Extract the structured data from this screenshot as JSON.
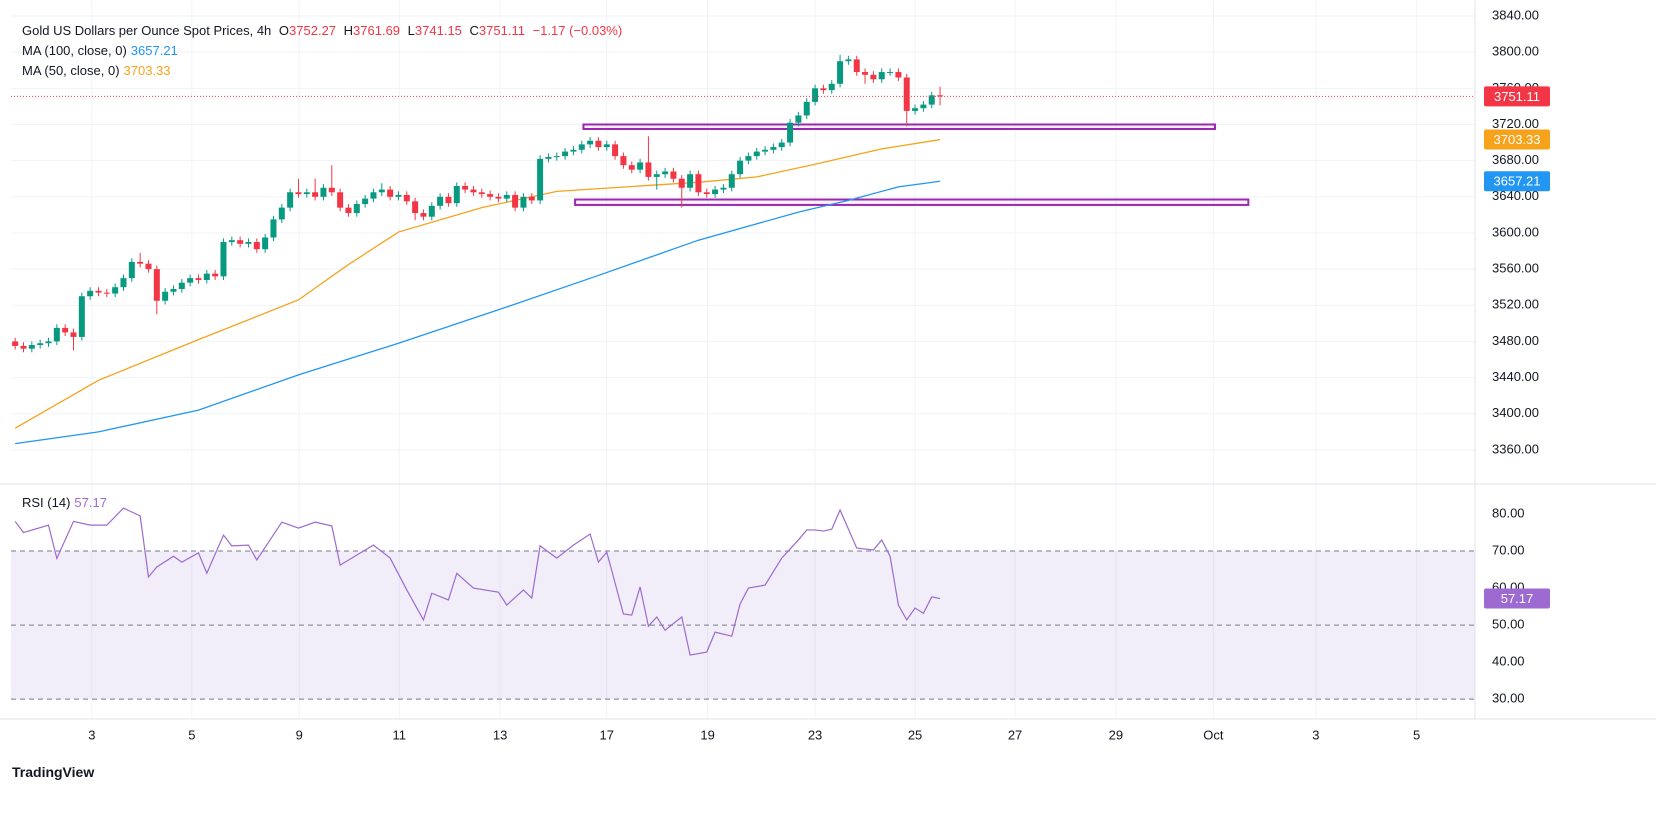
{
  "chart_data": [
    {
      "type": "candlestick",
      "title": "Gold US Dollars per Ounce Spot Prices, 4h",
      "ohlc_labels": [
        "O",
        "H",
        "L",
        "C"
      ],
      "change": "−1.17 (−0.03%)",
      "up_color": "#089981",
      "down_color": "#f23645",
      "xlim": [
        -0.5,
        175.2
      ],
      "ylim": [
        3323.4,
        3857.7
      ],
      "xticks": [
        {
          "value": 9.2,
          "label": "3"
        },
        {
          "value": 21.2,
          "label": "5"
        },
        {
          "value": 34.1,
          "label": "9"
        },
        {
          "value": 46.1,
          "label": "11"
        },
        {
          "value": 58.2,
          "label": "13"
        },
        {
          "value": 71,
          "label": "17"
        },
        {
          "value": 83.1,
          "label": "19"
        },
        {
          "value": 96,
          "label": "23"
        },
        {
          "value": 108,
          "label": "25"
        },
        {
          "value": 120,
          "label": "27"
        },
        {
          "value": 132.1,
          "label": "29"
        },
        {
          "value": 143.8,
          "label": "Oct"
        },
        {
          "value": 156.1,
          "label": "3"
        },
        {
          "value": 168.2,
          "label": "5"
        }
      ],
      "yticks": [
        {
          "value": 3360,
          "label": "3360.00"
        },
        {
          "value": 3400,
          "label": "3400.00"
        },
        {
          "value": 3440,
          "label": "3440.00"
        },
        {
          "value": 3480,
          "label": "3480.00"
        },
        {
          "value": 3520,
          "label": "3520.00"
        },
        {
          "value": 3560,
          "label": "3560.00"
        },
        {
          "value": 3600,
          "label": "3600.00"
        },
        {
          "value": 3640,
          "label": "3640.00"
        },
        {
          "value": 3680,
          "label": "3680.00"
        },
        {
          "value": 3720,
          "label": "3720.00"
        },
        {
          "value": 3760,
          "label": "3760.00"
        },
        {
          "value": 3800,
          "label": "3800.00"
        },
        {
          "value": 3840,
          "label": "3840.00"
        }
      ],
      "grid": true,
      "open": [
        3480,
        3475,
        3472,
        3476,
        3478,
        3480,
        3495,
        3490,
        3485,
        3530,
        3536,
        3534,
        3533,
        3540,
        3550,
        3568,
        3566,
        3560,
        3525,
        3535,
        3538,
        3545,
        3550,
        3548,
        3555,
        3552,
        3590,
        3592,
        3588,
        3590,
        3582,
        3595,
        3615,
        3628,
        3645,
        3643,
        3645,
        3640,
        3650,
        3645,
        3628,
        3622,
        3632,
        3638,
        3645,
        3648,
        3640,
        3642,
        3635,
        3622,
        3618,
        3630,
        3640,
        3633,
        3652,
        3648,
        3645,
        3643,
        3640,
        3638,
        3642,
        3628,
        3640,
        3636,
        3682,
        3684,
        3685,
        3690,
        3692,
        3698,
        3702,
        3695,
        3698,
        3685,
        3675,
        3670,
        3678,
        3662,
        3665,
        3668,
        3660,
        3650,
        3665,
        3645,
        3643,
        3648,
        3650,
        3665,
        3680,
        3685,
        3690,
        3692,
        3695,
        3700,
        3722,
        3730,
        3745,
        3760,
        3758,
        3765,
        3790,
        3792,
        3778,
        3775,
        3770,
        3778,
        3778,
        3772,
        3735,
        3738,
        3742,
        3752.27
      ],
      "high": [
        3484,
        3479,
        3480,
        3482,
        3484,
        3499,
        3499,
        3494,
        3534,
        3540,
        3540,
        3538,
        3544,
        3554,
        3572,
        3578,
        3570,
        3564,
        3539,
        3542,
        3549,
        3554,
        3554,
        3559,
        3559,
        3594,
        3596,
        3596,
        3594,
        3594,
        3599,
        3619,
        3632,
        3649,
        3660,
        3649,
        3660,
        3654,
        3675,
        3649,
        3632,
        3636,
        3642,
        3649,
        3655,
        3652,
        3646,
        3646,
        3639,
        3626,
        3634,
        3644,
        3644,
        3656,
        3656,
        3652,
        3649,
        3647,
        3644,
        3646,
        3646,
        3644,
        3644,
        3686,
        3688,
        3689,
        3694,
        3696,
        3702,
        3706,
        3706,
        3702,
        3702,
        3689,
        3679,
        3682,
        3707,
        3669,
        3672,
        3672,
        3664,
        3669,
        3669,
        3649,
        3652,
        3654,
        3669,
        3684,
        3689,
        3694,
        3696,
        3699,
        3704,
        3726,
        3734,
        3749,
        3764,
        3764,
        3769,
        3797,
        3796,
        3796,
        3782,
        3779,
        3782,
        3782,
        3782,
        3776,
        3742,
        3746,
        3756,
        3761.69
      ],
      "low": [
        3471,
        3468,
        3468,
        3472,
        3474,
        3476,
        3486,
        3470,
        3481,
        3526,
        3530,
        3529,
        3529,
        3536,
        3546,
        3562,
        3556,
        3510,
        3521,
        3531,
        3534,
        3541,
        3544,
        3544,
        3548,
        3548,
        3586,
        3584,
        3584,
        3578,
        3578,
        3591,
        3611,
        3624,
        3639,
        3639,
        3636,
        3636,
        3641,
        3624,
        3618,
        3618,
        3628,
        3634,
        3641,
        3636,
        3636,
        3631,
        3614,
        3614,
        3614,
        3626,
        3629,
        3629,
        3644,
        3641,
        3639,
        3636,
        3634,
        3634,
        3624,
        3624,
        3632,
        3632,
        3678,
        3680,
        3681,
        3686,
        3688,
        3694,
        3691,
        3691,
        3681,
        3671,
        3666,
        3666,
        3658,
        3648,
        3661,
        3656,
        3628,
        3646,
        3641,
        3639,
        3639,
        3644,
        3646,
        3661,
        3676,
        3681,
        3686,
        3688,
        3691,
        3696,
        3718,
        3726,
        3741,
        3754,
        3754,
        3761,
        3786,
        3774,
        3765,
        3766,
        3766,
        3774,
        3768,
        3718,
        3731,
        3734,
        3738,
        3741.15
      ],
      "close": [
        3475,
        3472,
        3476,
        3478,
        3480,
        3495,
        3490,
        3485,
        3530,
        3536,
        3534,
        3533,
        3540,
        3550,
        3568,
        3566,
        3560,
        3525,
        3535,
        3538,
        3545,
        3550,
        3548,
        3555,
        3552,
        3590,
        3592,
        3588,
        3590,
        3582,
        3595,
        3615,
        3628,
        3645,
        3643,
        3645,
        3640,
        3650,
        3645,
        3628,
        3622,
        3632,
        3638,
        3645,
        3648,
        3640,
        3642,
        3635,
        3622,
        3618,
        3630,
        3640,
        3633,
        3652,
        3648,
        3645,
        3643,
        3640,
        3638,
        3642,
        3628,
        3640,
        3636,
        3682,
        3684,
        3685,
        3690,
        3692,
        3698,
        3702,
        3695,
        3698,
        3685,
        3675,
        3670,
        3678,
        3662,
        3665,
        3668,
        3660,
        3650,
        3665,
        3645,
        3643,
        3648,
        3650,
        3665,
        3680,
        3685,
        3690,
        3692,
        3695,
        3700,
        3722,
        3730,
        3745,
        3760,
        3758,
        3765,
        3790,
        3792,
        3778,
        3775,
        3770,
        3778,
        3778,
        3772,
        3735,
        3738,
        3742,
        3752.27,
        3751.11
      ],
      "series": [
        {
          "name": "MA (100, close, 0)",
          "color": "#2196f3",
          "x": [
            0,
            10,
            22,
            34,
            46,
            58,
            70,
            82,
            94,
            100,
            106,
            111
          ],
          "values": [
            3367,
            3380,
            3404,
            3443,
            3478,
            3515,
            3553,
            3592,
            3623,
            3636,
            3651,
            3657.21
          ]
        },
        {
          "name": "MA (50, close, 0)",
          "color": "#f7a21b",
          "x": [
            0,
            10,
            22,
            34,
            40,
            46,
            56,
            65,
            75,
            82,
            89,
            96,
            104,
            111
          ],
          "values": [
            3384,
            3437,
            3482,
            3526,
            3565,
            3601,
            3628,
            3646,
            3652,
            3656,
            3662,
            3676,
            3693,
            3703.33
          ]
        }
      ],
      "zones": [
        {
          "x": [
            68.2,
            144
          ],
          "y": [
            3715,
            3720
          ]
        },
        {
          "x": [
            67.2,
            148
          ],
          "y": [
            3631,
            3637
          ]
        }
      ],
      "zone_color": "#9c27b0"
    },
    {
      "type": "line",
      "title": "RSI (14)",
      "color": "#9c6ad0",
      "xlim": [
        -0.5,
        175.2
      ],
      "ylim": [
        24.9,
        87.3
      ],
      "yticks": [
        {
          "value": 30,
          "label": "30.00"
        },
        {
          "value": 40,
          "label": "40.00"
        },
        {
          "value": 50,
          "label": "50.00"
        },
        {
          "value": 60,
          "label": "60.00"
        },
        {
          "value": 70,
          "label": "70.00"
        },
        {
          "value": 80,
          "label": "80.00"
        }
      ],
      "band": [
        30,
        70
      ],
      "levels": [
        70,
        50,
        30
      ],
      "x": [
        0,
        1,
        4,
        5,
        7,
        9,
        11,
        13,
        15,
        16,
        17,
        19,
        20,
        22,
        23,
        25,
        26,
        28,
        29,
        32,
        34,
        36,
        38,
        39,
        43,
        45,
        47,
        49,
        50,
        52,
        53,
        55,
        58,
        59,
        61,
        62,
        63,
        65,
        67,
        69,
        70,
        71,
        73,
        74,
        75,
        76,
        77,
        78,
        80,
        81,
        83,
        84,
        86,
        87,
        88,
        90,
        92,
        94,
        95,
        96,
        97,
        98,
        99,
        101,
        103,
        104,
        105,
        106,
        107,
        108,
        109,
        110,
        111
      ],
      "values": [
        78,
        75,
        77,
        68,
        78,
        77,
        77,
        81.6,
        79.5,
        63,
        65.7,
        68.6,
        67,
        69.5,
        64,
        74.3,
        71.4,
        71.6,
        67.6,
        77.8,
        76.2,
        77.8,
        76.8,
        66.2,
        71.6,
        68.1,
        59.5,
        51.4,
        58.6,
        56.8,
        64,
        60,
        58.9,
        55.4,
        59.5,
        57.3,
        71.4,
        68.1,
        71.6,
        74.6,
        67,
        69.7,
        53,
        52.7,
        60.3,
        49.7,
        52.2,
        48.6,
        52.2,
        41.9,
        42.7,
        48.1,
        47,
        55.7,
        60,
        60.8,
        68.1,
        73,
        75.7,
        75.7,
        75.4,
        75.9,
        81.1,
        70.8,
        70.3,
        73,
        68.6,
        55.4,
        51.4,
        54.6,
        53.2,
        57.6,
        57.17
      ]
    }
  ],
  "footer": "TradingView"
}
